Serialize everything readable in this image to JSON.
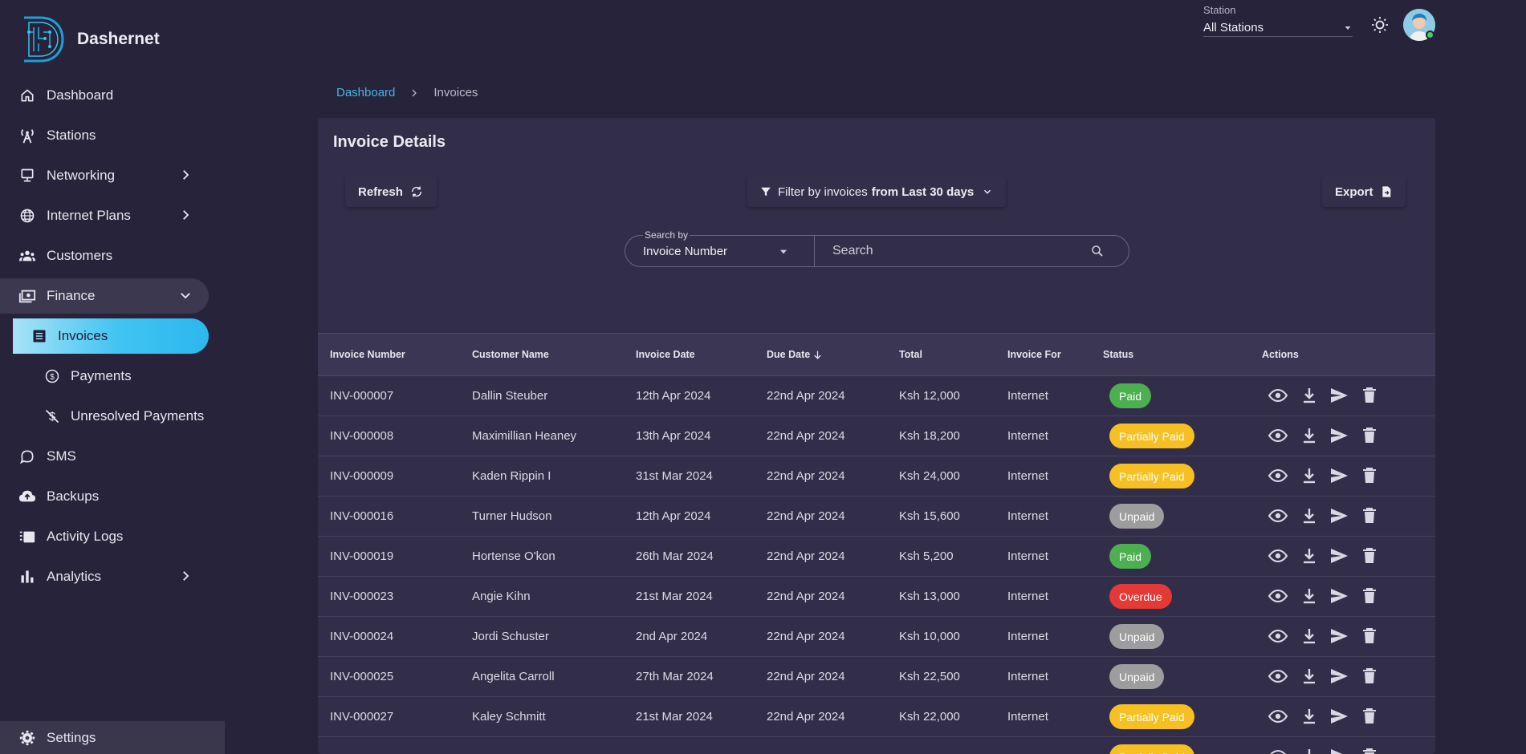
{
  "app": {
    "name": "Dashernet"
  },
  "topbar": {
    "station_label": "Station",
    "station_value": "All Stations"
  },
  "sidebar": {
    "items": [
      {
        "label": "Dashboard",
        "icon": "home-icon"
      },
      {
        "label": "Stations",
        "icon": "tower-icon"
      },
      {
        "label": "Networking",
        "icon": "monitor-icon",
        "expandable": true
      },
      {
        "label": "Internet Plans",
        "icon": "globe-icon",
        "expandable": true
      },
      {
        "label": "Customers",
        "icon": "people-icon"
      },
      {
        "label": "Finance",
        "icon": "money-icon",
        "expanded": true
      }
    ],
    "finance_sub": [
      {
        "label": "Invoices",
        "icon": "receipt-icon",
        "active": true
      },
      {
        "label": "Payments",
        "icon": "dollar-circle-icon"
      },
      {
        "label": "Unresolved Payments",
        "icon": "money-off-icon"
      }
    ],
    "items_after": [
      {
        "label": "SMS",
        "icon": "chat-bubble-icon"
      },
      {
        "label": "Backups",
        "icon": "cloud-upload-icon"
      },
      {
        "label": "Activity Logs",
        "icon": "logs-icon"
      },
      {
        "label": "Analytics",
        "icon": "bar-chart-icon",
        "expandable": true
      }
    ],
    "settings_label": "Settings"
  },
  "breadcrumb": {
    "root": "Dashboard",
    "current": "Invoices"
  },
  "card": {
    "title": "Invoice Details",
    "refresh_label": "Refresh",
    "filter_prefix": "Filter by invoices",
    "filter_range": "from Last 30 days",
    "export_label": "Export",
    "search_by_label": "Search by",
    "search_by_value": "Invoice Number",
    "search_placeholder": "Search"
  },
  "table": {
    "columns": [
      "Invoice Number",
      "Customer Name",
      "Invoice Date",
      "Due Date",
      "Total",
      "Invoice For",
      "Status",
      "Actions"
    ],
    "rows": [
      {
        "number": "INV-000007",
        "customer": "Dallin Steuber",
        "invoice_date": "12th Apr 2024",
        "due_date": "22nd Apr 2024",
        "total": "Ksh 12,000",
        "for": "Internet",
        "status": "Paid",
        "status_type": "paid"
      },
      {
        "number": "INV-000008",
        "customer": "Maximillian Heaney",
        "invoice_date": "13th Apr 2024",
        "due_date": "22nd Apr 2024",
        "total": "Ksh 18,200",
        "for": "Internet",
        "status": "Partially Paid",
        "status_type": "partial"
      },
      {
        "number": "INV-000009",
        "customer": "Kaden Rippin I",
        "invoice_date": "31st Mar 2024",
        "due_date": "22nd Apr 2024",
        "total": "Ksh 24,000",
        "for": "Internet",
        "status": "Partially Paid",
        "status_type": "partial"
      },
      {
        "number": "INV-000016",
        "customer": "Turner Hudson",
        "invoice_date": "12th Apr 2024",
        "due_date": "22nd Apr 2024",
        "total": "Ksh 15,600",
        "for": "Internet",
        "status": "Unpaid",
        "status_type": "unpaid"
      },
      {
        "number": "INV-000019",
        "customer": "Hortense O'kon",
        "invoice_date": "26th Mar 2024",
        "due_date": "22nd Apr 2024",
        "total": "Ksh 5,200",
        "for": "Internet",
        "status": "Paid",
        "status_type": "paid"
      },
      {
        "number": "INV-000023",
        "customer": "Angie Kihn",
        "invoice_date": "21st Mar 2024",
        "due_date": "22nd Apr 2024",
        "total": "Ksh 13,000",
        "for": "Internet",
        "status": "Overdue",
        "status_type": "overdue"
      },
      {
        "number": "INV-000024",
        "customer": "Jordi Schuster",
        "invoice_date": "2nd Apr 2024",
        "due_date": "22nd Apr 2024",
        "total": "Ksh 10,000",
        "for": "Internet",
        "status": "Unpaid",
        "status_type": "unpaid"
      },
      {
        "number": "INV-000025",
        "customer": "Angelita Carroll",
        "invoice_date": "27th Mar 2024",
        "due_date": "22nd Apr 2024",
        "total": "Ksh 22,500",
        "for": "Internet",
        "status": "Unpaid",
        "status_type": "unpaid"
      },
      {
        "number": "INV-000027",
        "customer": "Kaley Schmitt",
        "invoice_date": "21st Mar 2024",
        "due_date": "22nd Apr 2024",
        "total": "Ksh 22,000",
        "for": "Internet",
        "status": "Partially Paid",
        "status_type": "partial"
      },
      {
        "number": "",
        "customer": "",
        "invoice_date": "",
        "due_date": "",
        "total": "",
        "for": "",
        "status": "Partially Paid",
        "status_type": "partial"
      }
    ]
  },
  "colors": {
    "accent": "#3fb8ec",
    "background": "#26233a",
    "card": "#322e49"
  }
}
